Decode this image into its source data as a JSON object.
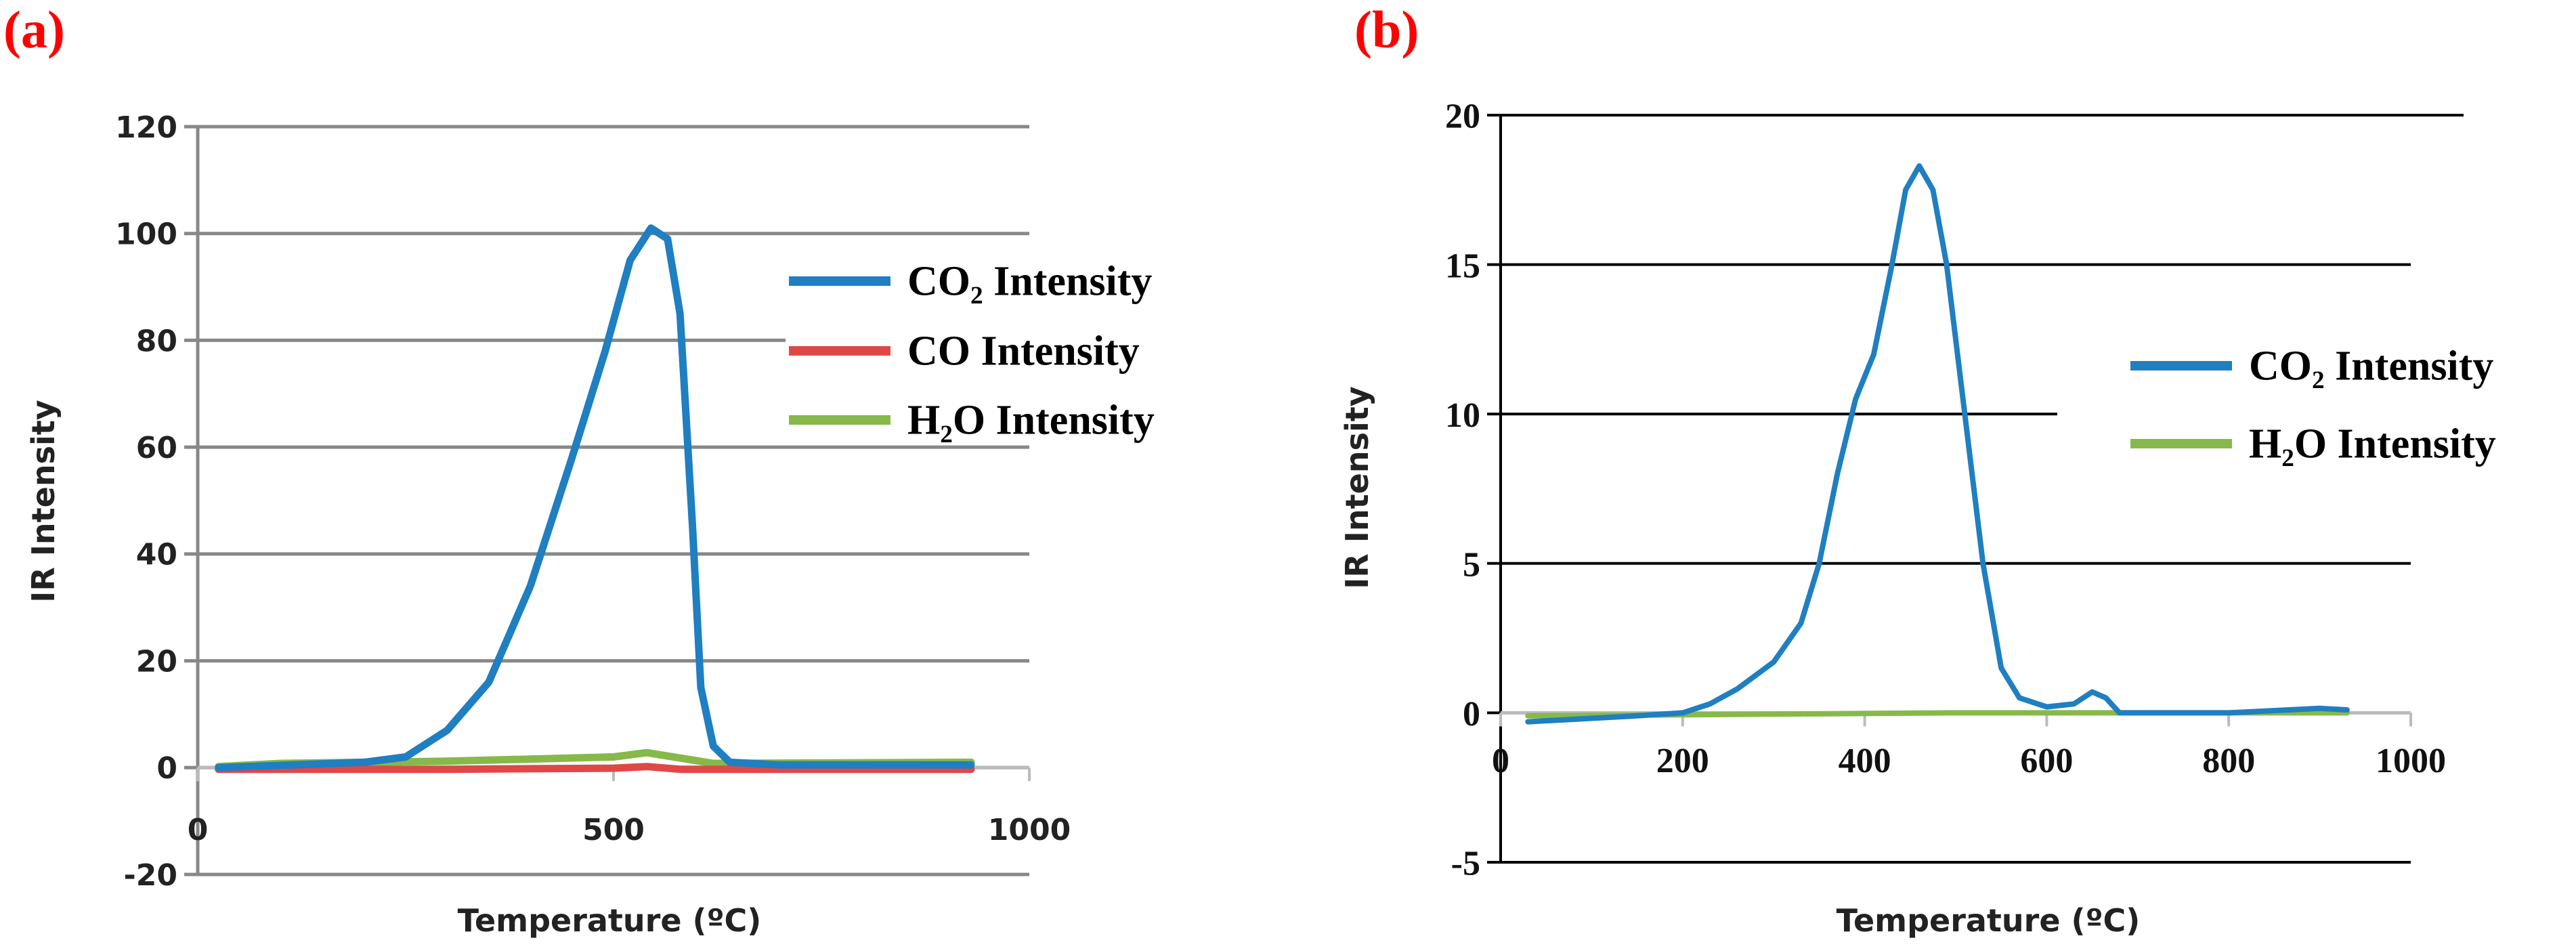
{
  "chart_data": [
    {
      "panel_label": "(a)",
      "type": "line",
      "xlabel": "Temperature (ºC)",
      "ylabel": "IR Intensity",
      "xlim": [
        0,
        1000
      ],
      "ylim": [
        -20,
        120
      ],
      "xticks": [
        0,
        500,
        1000
      ],
      "yticks": [
        -20,
        0,
        20,
        40,
        60,
        80,
        100,
        120
      ],
      "grid": true,
      "legend": "right",
      "series": [
        {
          "name": "CO₂ Intensity",
          "color": "#1f7fc1",
          "points": [
            [
              25,
              0
            ],
            [
              200,
              1
            ],
            [
              250,
              2
            ],
            [
              300,
              7
            ],
            [
              350,
              16
            ],
            [
              400,
              34
            ],
            [
              450,
              58
            ],
            [
              490,
              78
            ],
            [
              520,
              95
            ],
            [
              545,
              101
            ],
            [
              565,
              99
            ],
            [
              580,
              85
            ],
            [
              595,
              45
            ],
            [
              605,
              15
            ],
            [
              620,
              4
            ],
            [
              640,
              1
            ],
            [
              700,
              0.5
            ],
            [
              930,
              0.5
            ]
          ]
        },
        {
          "name": "CO Intensity",
          "color": "#e04848",
          "points": [
            [
              25,
              -0.3
            ],
            [
              300,
              -0.3
            ],
            [
              500,
              -0.1
            ],
            [
              540,
              0.2
            ],
            [
              580,
              -0.3
            ],
            [
              930,
              -0.3
            ]
          ]
        },
        {
          "name": "H₂O Intensity",
          "color": "#86b94a",
          "points": [
            [
              25,
              0.2
            ],
            [
              100,
              0.8
            ],
            [
              300,
              1.2
            ],
            [
              500,
              2
            ],
            [
              540,
              2.8
            ],
            [
              580,
              1.8
            ],
            [
              620,
              0.8
            ],
            [
              930,
              1
            ]
          ]
        }
      ]
    },
    {
      "panel_label": "(b)",
      "type": "line",
      "xlabel": "Temperature (ºC)",
      "ylabel": "IR Intensity",
      "xlim": [
        0,
        1000
      ],
      "ylim": [
        -5,
        20
      ],
      "xticks": [
        0,
        200,
        400,
        600,
        800,
        1000
      ],
      "yticks": [
        -5,
        0,
        5,
        10,
        15,
        20
      ],
      "grid": true,
      "legend": "right",
      "series": [
        {
          "name": "CO₂ Intensity",
          "color": "#1f7fc1",
          "points": [
            [
              30,
              -0.3
            ],
            [
              150,
              -0.1
            ],
            [
              200,
              0
            ],
            [
              230,
              0.3
            ],
            [
              260,
              0.8
            ],
            [
              300,
              1.7
            ],
            [
              330,
              3
            ],
            [
              350,
              5
            ],
            [
              370,
              8
            ],
            [
              390,
              10.5
            ],
            [
              410,
              12
            ],
            [
              430,
              15
            ],
            [
              445,
              17.5
            ],
            [
              460,
              18.3
            ],
            [
              475,
              17.5
            ],
            [
              490,
              15
            ],
            [
              510,
              10
            ],
            [
              530,
              5
            ],
            [
              550,
              1.5
            ],
            [
              570,
              0.5
            ],
            [
              600,
              0.2
            ],
            [
              630,
              0.3
            ],
            [
              650,
              0.7
            ],
            [
              665,
              0.5
            ],
            [
              680,
              0
            ],
            [
              800,
              0
            ],
            [
              900,
              0.15
            ],
            [
              930,
              0.1
            ]
          ]
        },
        {
          "name": "H₂O Intensity",
          "color": "#86b94a",
          "points": [
            [
              30,
              -0.1
            ],
            [
              500,
              0
            ],
            [
              930,
              0
            ]
          ]
        }
      ]
    }
  ]
}
